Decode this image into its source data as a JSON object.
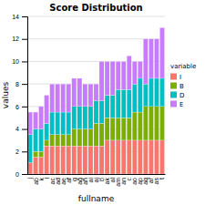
{
  "chart_data": {
    "type": "bar",
    "stacked": true,
    "title": "Score Distribution",
    "x_label": "fullname",
    "y_label": "values",
    "categories": [
      "j",
      "ab",
      "k",
      "l",
      "ac",
      "ad",
      "ae",
      "af",
      "g",
      "ag",
      "ah",
      "ai",
      "aj",
      "b",
      "ak",
      "al",
      "am",
      "an",
      "c",
      "ao",
      "ap",
      "aq",
      "ar",
      "as",
      "t"
    ],
    "series": [
      {
        "name": "I",
        "color": "#F8766D",
        "values": [
          1.0,
          1.5,
          1.5,
          2.5,
          2.5,
          2.5,
          2.5,
          2.5,
          2.5,
          2.5,
          2.5,
          2.5,
          2.5,
          2.5,
          3.0,
          3.0,
          3.0,
          3.0,
          3.0,
          3.0,
          3.0,
          3.0,
          3.0,
          3.0,
          3.0
        ]
      },
      {
        "name": "B",
        "color": "#7CAE00",
        "values": [
          0.0,
          0.5,
          0.5,
          0.5,
          1.0,
          1.0,
          1.0,
          1.0,
          1.5,
          1.5,
          1.5,
          1.5,
          2.0,
          2.0,
          2.0,
          2.0,
          2.0,
          2.0,
          2.0,
          2.5,
          2.5,
          3.0,
          3.0,
          3.0,
          3.0
        ]
      },
      {
        "name": "D",
        "color": "#00BFC4",
        "values": [
          2.5,
          2.0,
          2.0,
          1.5,
          2.0,
          2.0,
          2.0,
          2.0,
          2.0,
          2.0,
          2.0,
          2.0,
          2.0,
          2.0,
          2.0,
          2.0,
          2.5,
          2.5,
          2.5,
          2.5,
          3.0,
          2.0,
          2.5,
          2.5,
          2.5
        ]
      },
      {
        "name": "E",
        "color": "#C77CFF",
        "values": [
          2.0,
          1.5,
          2.0,
          2.5,
          2.5,
          2.5,
          2.5,
          2.5,
          2.5,
          2.5,
          2.0,
          2.0,
          1.5,
          3.5,
          3.0,
          3.0,
          2.5,
          2.5,
          3.0,
          2.0,
          1.5,
          4.0,
          3.5,
          3.5,
          4.5
        ]
      }
    ],
    "legend_title": "variable",
    "legend": "right",
    "ylim": [
      0,
      14
    ],
    "yticks": [
      0,
      2,
      4,
      6,
      8,
      10,
      12,
      14
    ],
    "grid": true
  }
}
